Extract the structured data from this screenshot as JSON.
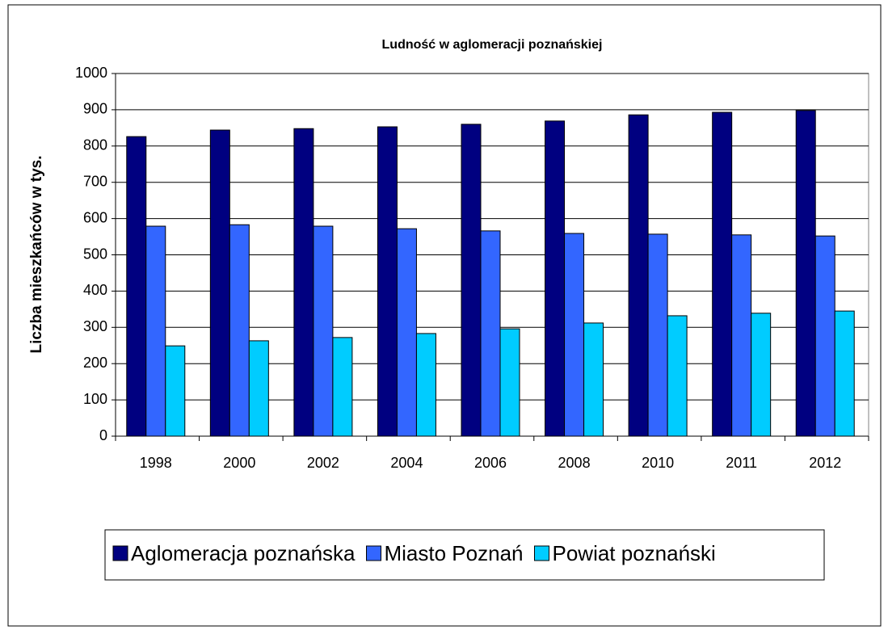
{
  "chart_data": {
    "type": "bar",
    "title": "Ludność w aglomeracji poznańskiej",
    "y_label": "Liczba mieszkańców w tys.",
    "categories": [
      "1998",
      "2000",
      "2002",
      "2004",
      "2006",
      "2008",
      "2010",
      "2011",
      "2012"
    ],
    "series": [
      {
        "name": "Aglomeracja poznańska",
        "color": "#000080",
        "values": [
          826,
          844,
          848,
          853,
          860,
          869,
          886,
          893,
          898
        ]
      },
      {
        "name": "Miasto Poznań",
        "color": "#3366ff",
        "values": [
          579,
          583,
          579,
          572,
          566,
          559,
          557,
          555,
          552
        ]
      },
      {
        "name": "Powiat poznański",
        "color": "#00ccff",
        "values": [
          249,
          263,
          272,
          283,
          296,
          312,
          332,
          339,
          345
        ]
      }
    ],
    "ylim": [
      0,
      1000
    ],
    "yticks": [
      0,
      100,
      200,
      300,
      400,
      500,
      600,
      700,
      800,
      900,
      1000
    ],
    "grid": true,
    "legend": "bottom"
  }
}
